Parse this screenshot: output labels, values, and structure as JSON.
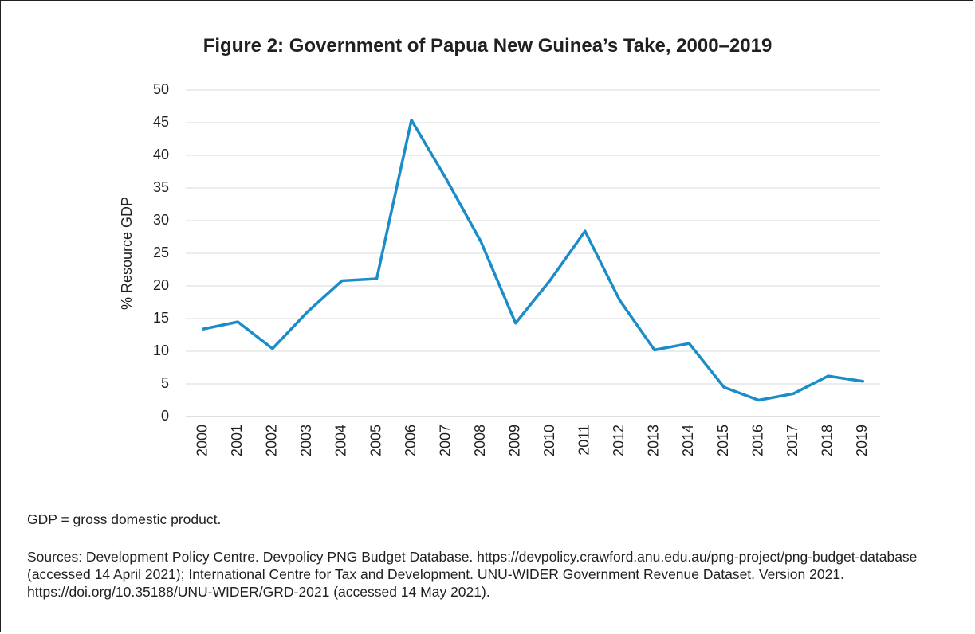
{
  "figure": {
    "title": "Figure 2: Government of Papua New Guinea’s Take, 2000–2019",
    "footnote": "GDP = gross domestic product.",
    "sources": "Sources: Development Policy Centre. Devpolicy PNG Budget Database. https://devpolicy.crawford.anu.edu.au/png-project/png-budget-database (accessed 14 April 2021); International Centre for Tax and Development. UNU-WIDER Government Revenue Dataset. Version 2021. https://doi.org/10.35188/UNU-WIDER/GRD-2021 (accessed 14 May 2021)."
  },
  "colors": {
    "line": "#1a8cc7",
    "grid": "#d9d9d9",
    "text": "#231f20"
  },
  "chart_data": {
    "type": "line",
    "title": "Figure 2: Government of Papua New Guinea’s Take, 2000–2019",
    "xlabel": "",
    "ylabel": "% Resource GDP",
    "ylim": [
      0,
      50
    ],
    "yticks": [
      "0",
      "5",
      "10",
      "15",
      "20",
      "25",
      "30",
      "35",
      "40",
      "45",
      "50"
    ],
    "grid": "horizontal",
    "categories": [
      "2000",
      "2001",
      "2002",
      "2003",
      "2004",
      "2005",
      "2006",
      "2007",
      "2008",
      "2009",
      "2010",
      "2011",
      "2012",
      "2013",
      "2014",
      "2015",
      "2016",
      "2017",
      "2018",
      "2019"
    ],
    "series": [
      {
        "values": [
          13.4,
          14.5,
          10.4,
          16.0,
          20.8,
          21.1,
          45.4,
          36.4,
          26.8,
          14.3,
          20.9,
          28.4,
          17.8,
          10.2,
          11.2,
          4.5,
          2.5,
          3.5,
          6.2,
          5.4
        ]
      }
    ]
  }
}
